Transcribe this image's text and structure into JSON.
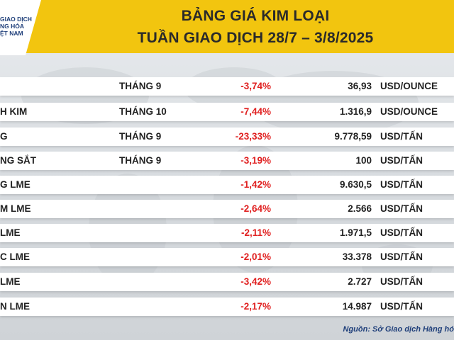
{
  "header": {
    "logo_lines": [
      "GIAO DỊCH",
      "NG HÓA",
      "ỆT NAM"
    ],
    "title_line1": "BẢNG GIÁ KIM LOẠI",
    "title_line2": "TUẦN GIAO DỊCH 28/7 – 3/8/2025"
  },
  "rows": [
    {
      "name": "",
      "month": "THÁNG 9",
      "change": "-3,74%",
      "price": "36,93",
      "unit": "USD/OUNCE"
    },
    {
      "name": "H KIM",
      "month": "THÁNG 10",
      "change": "-7,44%",
      "price": "1.316,9",
      "unit": "USD/OUNCE"
    },
    {
      "name": "G",
      "month": "THÁNG 9",
      "change": "-23,33%",
      "price": "9.778,59",
      "unit": "USD/TẤN"
    },
    {
      "name": "NG SẮT",
      "month": "THÁNG 9",
      "change": "-3,19%",
      "price": "100",
      "unit": "USD/TẤN"
    },
    {
      "name": "G LME",
      "month": "",
      "change": "-1,42%",
      "price": "9.630,5",
      "unit": "USD/TẤN"
    },
    {
      "name": "M LME",
      "month": "",
      "change": "-2,64%",
      "price": "2.566",
      "unit": "USD/TẤN"
    },
    {
      "name": "LME",
      "month": "",
      "change": "-2,11%",
      "price": "1.971,5",
      "unit": "USD/TẤN"
    },
    {
      "name": "C LME",
      "month": "",
      "change": "-2,01%",
      "price": "33.378",
      "unit": "USD/TẤN"
    },
    {
      "name": "LME",
      "month": "",
      "change": "-3,42%",
      "price": "2.727",
      "unit": "USD/TẤN"
    },
    {
      "name": "N LME",
      "month": "",
      "change": "-2,17%",
      "price": "14.987",
      "unit": "USD/TẤN"
    }
  ],
  "source": "Nguồn: Sở Giao dịch Hàng hó",
  "colors": {
    "banner": "#f2c50f",
    "negative": "#e02020",
    "logo_text": "#1f3f7a"
  }
}
